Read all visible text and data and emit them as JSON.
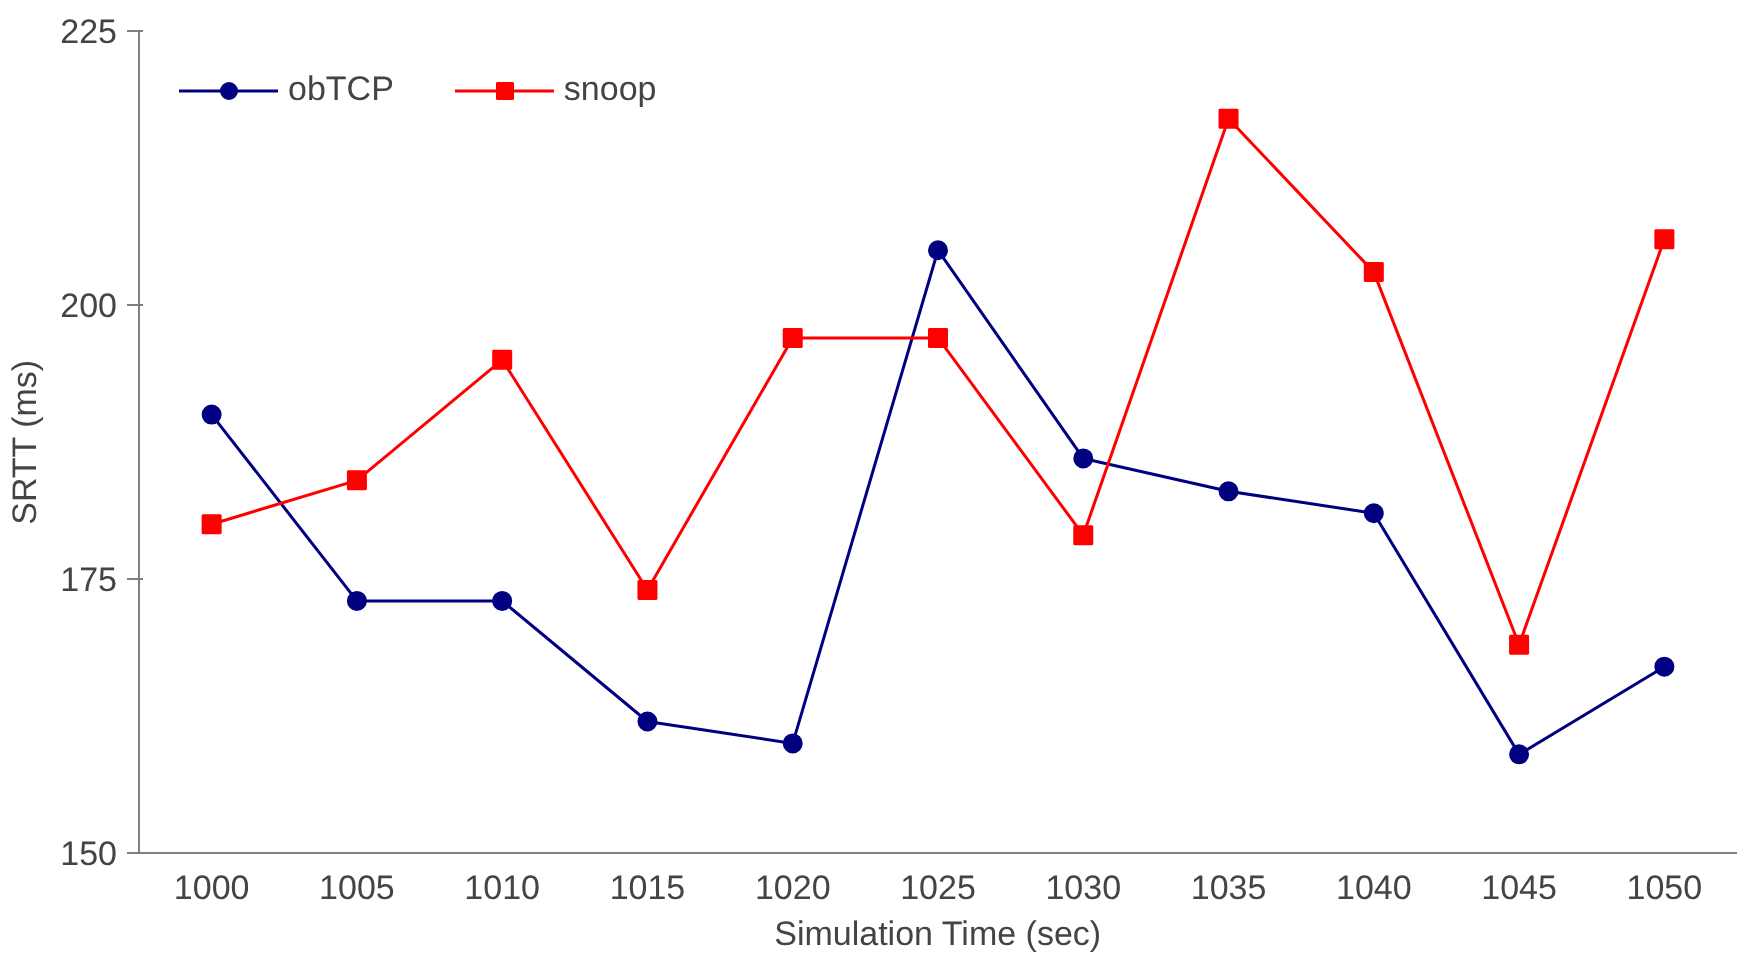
{
  "chart_data": {
    "type": "line",
    "xlabel": "Simulation Time (sec)",
    "ylabel": "SRTT (ms)",
    "categories": [
      "1000",
      "1005",
      "1010",
      "1015",
      "1020",
      "1025",
      "1030",
      "1035",
      "1040",
      "1045",
      "1050"
    ],
    "series": [
      {
        "name": "obTCP",
        "color": "#000080",
        "marker": "circle",
        "values": [
          190,
          173,
          173,
          162,
          160,
          205,
          186,
          183,
          181,
          159,
          167
        ]
      },
      {
        "name": "snoop",
        "color": "#ff0000",
        "marker": "square",
        "values": [
          180,
          184,
          195,
          174,
          197,
          197,
          179,
          217,
          203,
          169,
          206
        ]
      }
    ],
    "ylim": [
      150,
      225
    ],
    "yticks": [
      150,
      175,
      200,
      225
    ],
    "grid": false,
    "legend": "top left"
  }
}
